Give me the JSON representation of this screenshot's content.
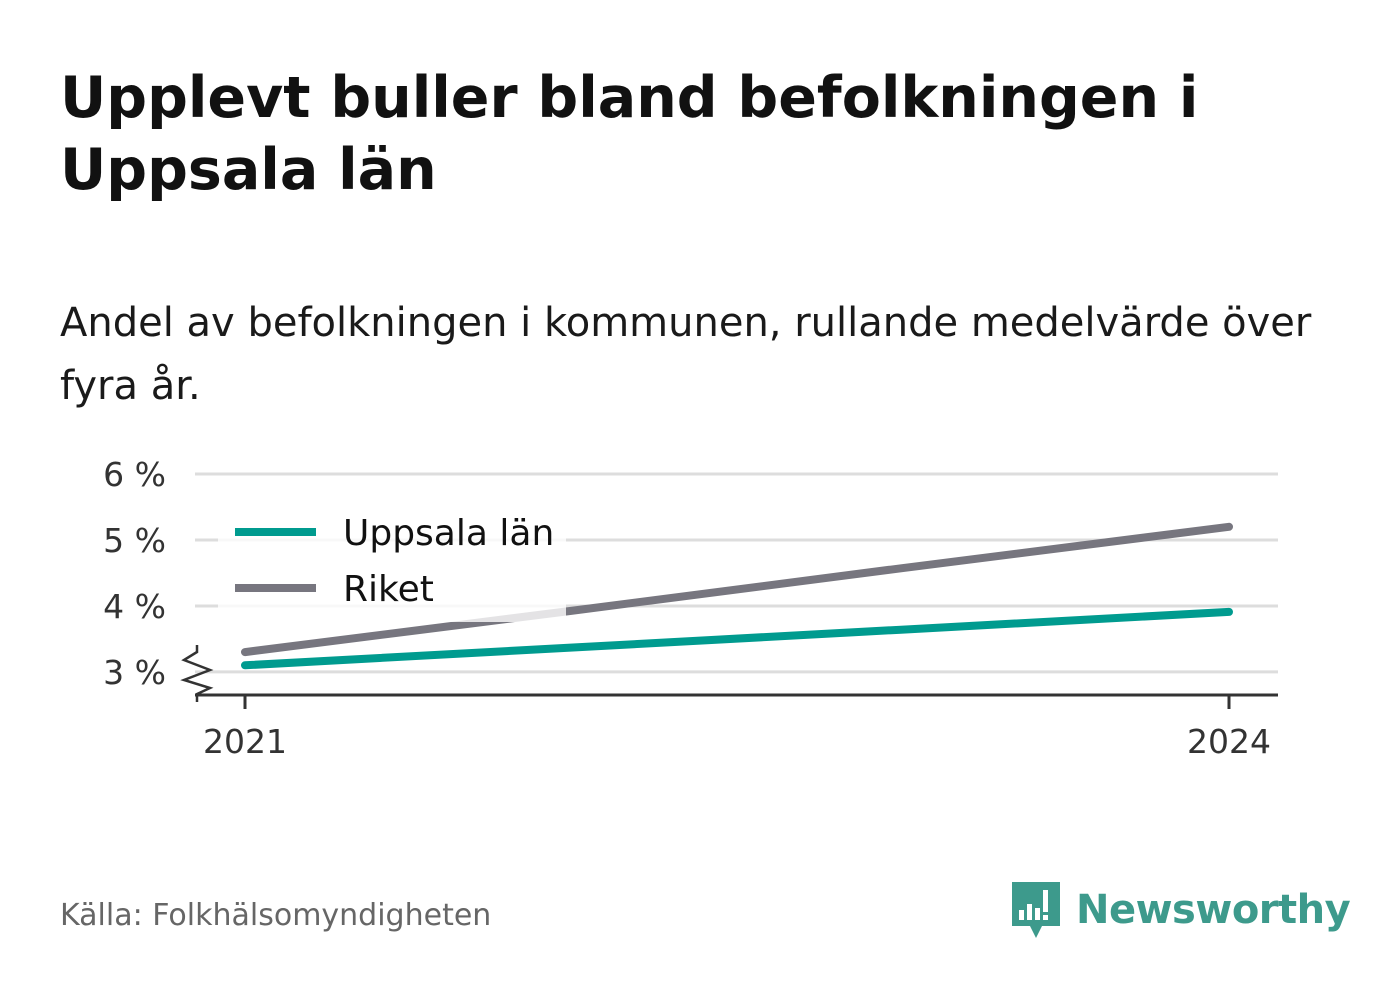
{
  "title": "Upplevt buller bland befolkningen i Uppsala län",
  "subtitle": "Andel av befolkningen i kommunen, rullande medelvärde över fyra år.",
  "source": "Källa: Folkhälsomyndigheten",
  "brand": {
    "name": "Newsworthy",
    "icon": "bar-chart-speech-bubble-icon",
    "color": "#3d9a8c"
  },
  "colors": {
    "uppsala": "#009b8f",
    "riket": "#77767f",
    "grid": "#dddddd",
    "axis": "#333333"
  },
  "chart_data": {
    "type": "line",
    "title": "Upplevt buller bland befolkningen i Uppsala län",
    "subtitle": "Andel av befolkningen i kommunen, rullande medelvärde över fyra år.",
    "x": [
      2021,
      2022,
      2023,
      2024
    ],
    "x_tick_labels": [
      "2021",
      "2024"
    ],
    "x_ticks": [
      2021,
      2024
    ],
    "xlim": [
      2020.95,
      2024.5
    ],
    "y_ticks": [
      3,
      4,
      5,
      6
    ],
    "y_tick_labels": [
      "3 %",
      "4 %",
      "5 %",
      "6 %"
    ],
    "ylim": [
      2.65,
      6
    ],
    "y_axis_break": true,
    "grid": true,
    "legend_position": "top-left",
    "series": [
      {
        "name": "Uppsala län",
        "color": "#009b8f",
        "values": [
          3.1,
          3.37,
          3.64,
          3.91
        ]
      },
      {
        "name": "Riket",
        "color": "#77767f",
        "values": [
          3.3,
          3.93,
          4.57,
          5.2
        ]
      }
    ]
  }
}
